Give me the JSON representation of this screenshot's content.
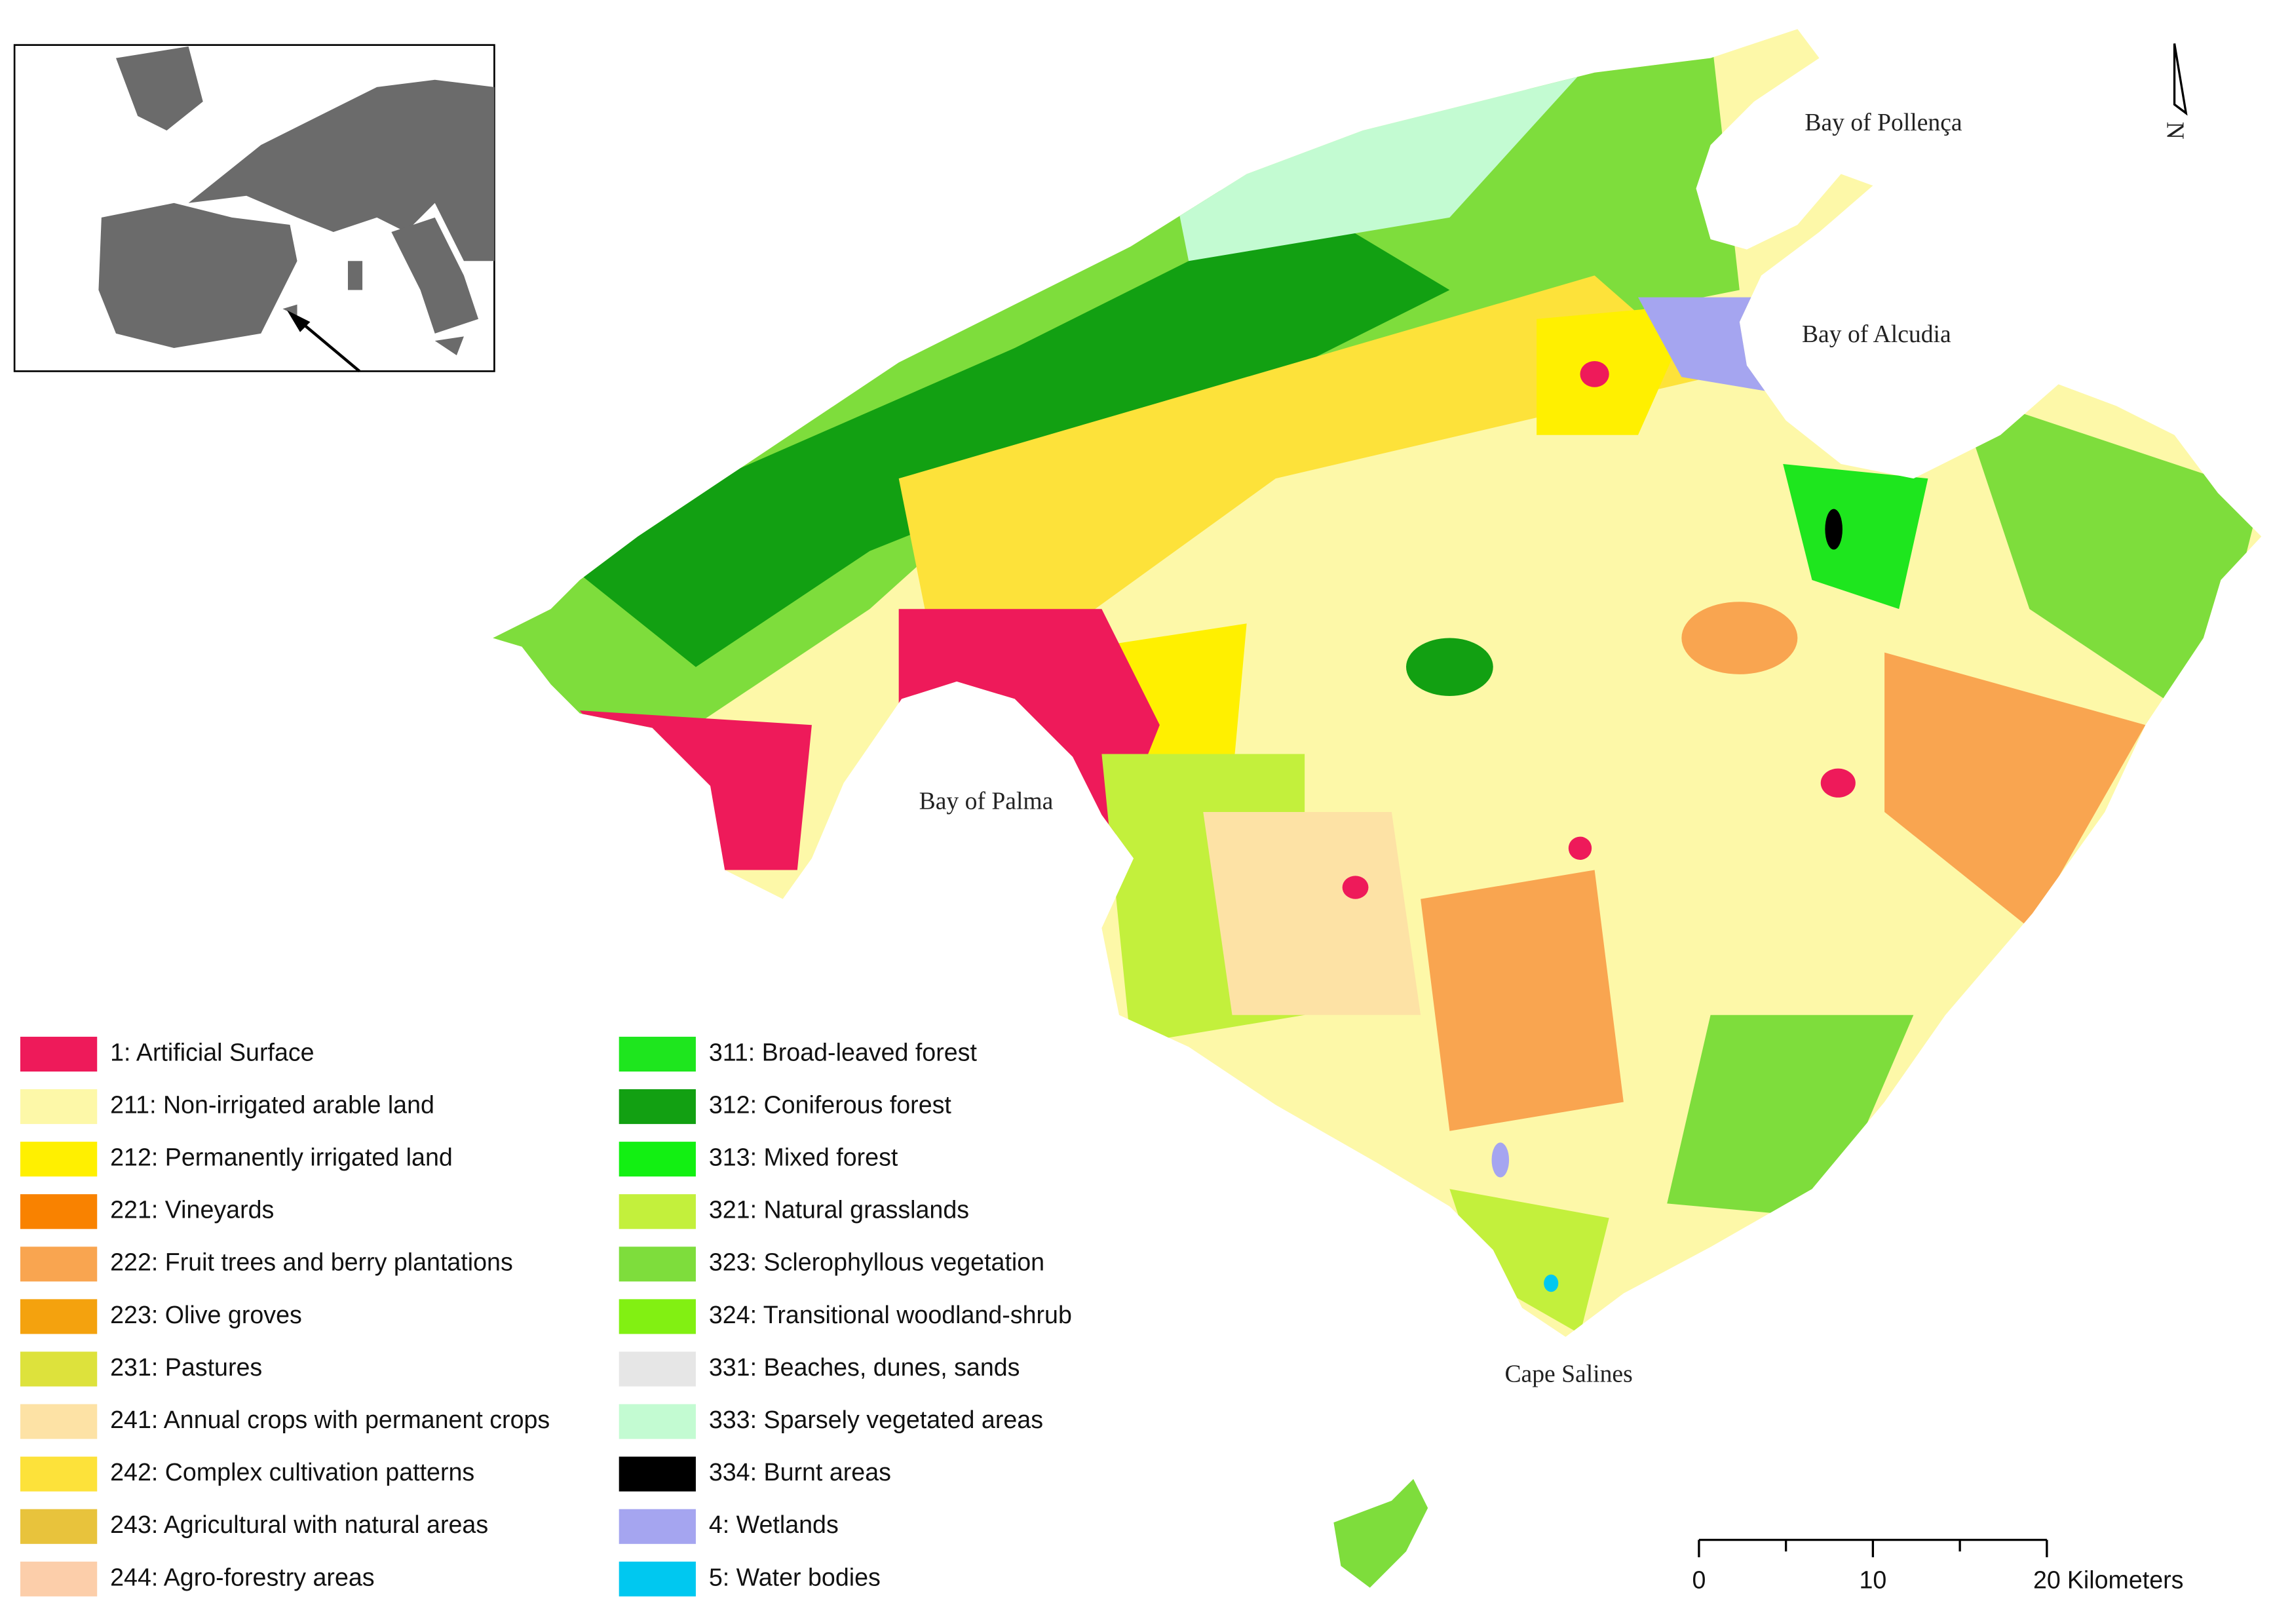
{
  "map": {
    "place_labels": [
      "Bay of Pollença",
      "Bay of Alcudia",
      "Bay of Palma",
      "Cape Salines"
    ],
    "north_label": "N",
    "legend": [
      {
        "label": "1: Artificial Surface",
        "color": "#ee1a5a"
      },
      {
        "label": "211: Non-irrigated arable land",
        "color": "#fdf8a8"
      },
      {
        "label": "212: Permanently irrigated land",
        "color": "#fff000"
      },
      {
        "label": "221: Vineyards",
        "color": "#f98200"
      },
      {
        "label": "222: Fruit trees and berry plantations",
        "color": "#f9a550"
      },
      {
        "label": "223: Olive groves",
        "color": "#f4a20e"
      },
      {
        "label": "231: Pastures",
        "color": "#dde23c"
      },
      {
        "label": "241: Annual crops with permanent crops",
        "color": "#fde2a5"
      },
      {
        "label": "242: Complex cultivation patterns",
        "color": "#fde23a"
      },
      {
        "label": "243: Agricultural with natural areas",
        "color": "#e8c33c"
      },
      {
        "label": "244: Agro-forestry areas",
        "color": "#fcceaa"
      },
      {
        "label": "311: Broad-leaved forest",
        "color": "#1ee61e"
      },
      {
        "label": "312: Coniferous forest",
        "color": "#12a012"
      },
      {
        "label": "313: Mixed forest",
        "color": "#12f012"
      },
      {
        "label": "321: Natural grasslands",
        "color": "#c3f03c"
      },
      {
        "label": "323: Sclerophyllous vegetation",
        "color": "#7edd3c"
      },
      {
        "label": "324: Transitional woodland-shrub",
        "color": "#82f012"
      },
      {
        "label": "331: Beaches, dunes, sands",
        "color": "#e6e6e6"
      },
      {
        "label": "333: Sparsely vegetated areas",
        "color": "#c3fbd2"
      },
      {
        "label": "334: Burnt areas",
        "color": "#000000"
      },
      {
        "label": "4: Wetlands",
        "color": "#a5a5f0"
      },
      {
        "label": "5: Water bodies",
        "color": "#00c8f0"
      }
    ],
    "scale_bar": {
      "ticks": [
        0,
        10,
        20
      ],
      "unit": "Kilometers"
    }
  }
}
